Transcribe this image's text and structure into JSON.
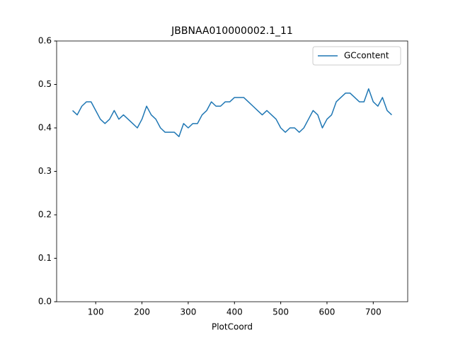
{
  "chart_data": {
    "type": "line",
    "title": "JBBNAA010000002.1_11",
    "xlabel": "PlotCoord",
    "x": [
      50,
      60,
      70,
      80,
      90,
      100,
      110,
      120,
      130,
      140,
      150,
      160,
      170,
      180,
      190,
      200,
      210,
      220,
      230,
      240,
      250,
      260,
      270,
      280,
      290,
      300,
      310,
      320,
      330,
      340,
      350,
      360,
      370,
      380,
      390,
      400,
      410,
      420,
      430,
      440,
      450,
      460,
      470,
      480,
      490,
      500,
      510,
      520,
      530,
      540,
      550,
      560,
      570,
      580,
      590,
      600,
      610,
      620,
      630,
      640,
      650,
      660,
      670,
      680,
      690,
      700,
      710,
      720,
      730,
      740
    ],
    "series": [
      {
        "name": "GCcontent",
        "color": "#1f77b4",
        "values": [
          0.44,
          0.43,
          0.45,
          0.46,
          0.46,
          0.44,
          0.42,
          0.41,
          0.42,
          0.44,
          0.42,
          0.43,
          0.42,
          0.41,
          0.4,
          0.42,
          0.45,
          0.43,
          0.42,
          0.4,
          0.39,
          0.39,
          0.39,
          0.38,
          0.41,
          0.4,
          0.41,
          0.41,
          0.43,
          0.44,
          0.46,
          0.45,
          0.45,
          0.46,
          0.46,
          0.47,
          0.47,
          0.47,
          0.46,
          0.45,
          0.44,
          0.43,
          0.44,
          0.43,
          0.42,
          0.4,
          0.39,
          0.4,
          0.4,
          0.39,
          0.4,
          0.42,
          0.44,
          0.43,
          0.4,
          0.42,
          0.43,
          0.46,
          0.47,
          0.48,
          0.48,
          0.47,
          0.46,
          0.46,
          0.49,
          0.46,
          0.45,
          0.47,
          0.44,
          0.43
        ]
      }
    ],
    "xlim": [
      15.5,
      774.5
    ],
    "xticks": [
      100,
      200,
      300,
      400,
      500,
      600,
      700
    ],
    "ylim": [
      0,
      0.6
    ],
    "yticks": [
      {
        "value": 0,
        "label": "0.0"
      },
      0.1,
      0.2,
      0.3,
      0.4,
      0.5,
      0.6
    ],
    "legend": "upper right",
    "grid": false
  }
}
